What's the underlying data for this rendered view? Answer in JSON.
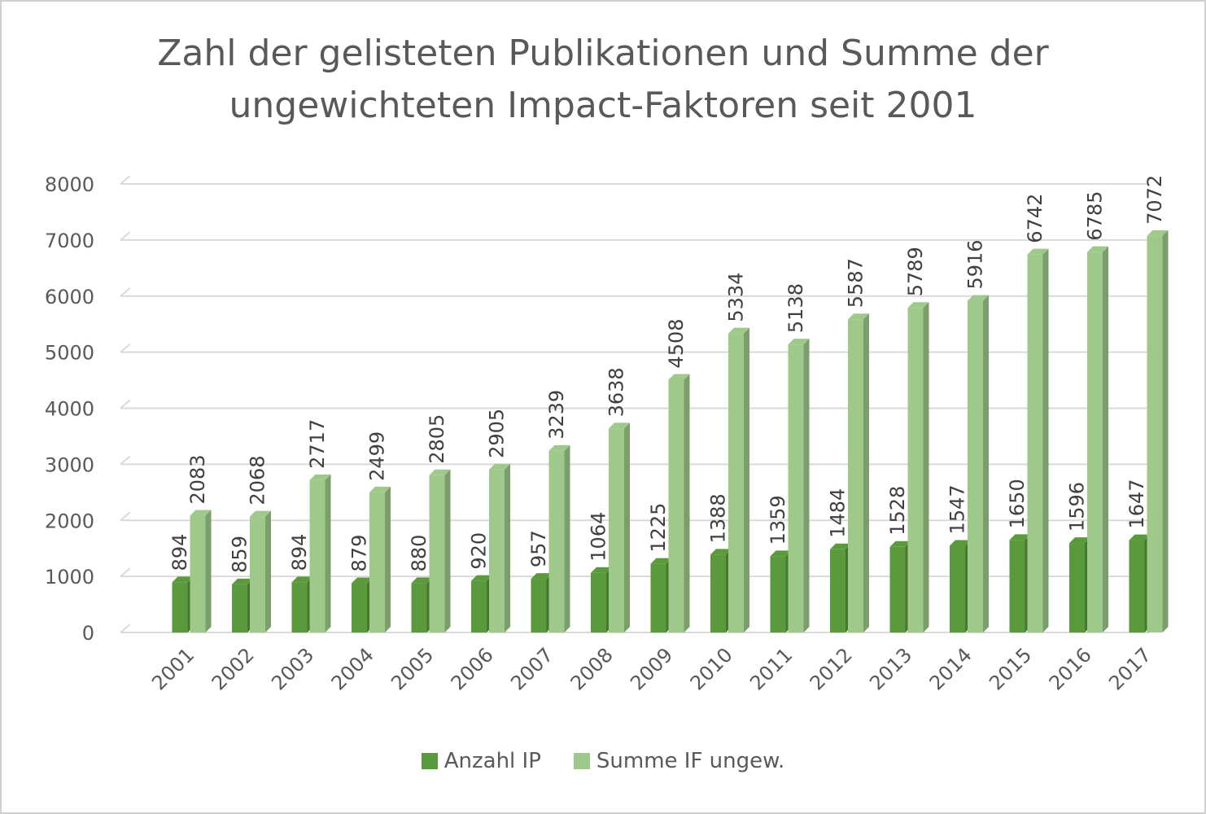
{
  "chart_data": {
    "type": "bar",
    "title_lines": [
      "Zahl der gelisteten Publikationen und Summe der",
      "ungewichteten Impact-Faktoren seit 2001"
    ],
    "categories": [
      "2001",
      "2002",
      "2003",
      "2004",
      "2005",
      "2006",
      "2007",
      "2008",
      "2009",
      "2010",
      "2011",
      "2012",
      "2013",
      "2014",
      "2015",
      "2016",
      "2017"
    ],
    "series": [
      {
        "name": "Anzahl IP",
        "color": "#5b9a3c",
        "values": [
          894,
          859,
          894,
          879,
          880,
          920,
          957,
          1064,
          1225,
          1388,
          1359,
          1484,
          1528,
          1547,
          1650,
          1596,
          1647
        ]
      },
      {
        "name": "Summe IF ungew.",
        "color": "#9fc98a",
        "values": [
          2083,
          2068,
          2717,
          2499,
          2805,
          2905,
          3239,
          3638,
          4508,
          5334,
          5138,
          5587,
          5789,
          5916,
          6742,
          6785,
          7072
        ]
      }
    ],
    "yticks": [
      0,
      1000,
      2000,
      3000,
      4000,
      5000,
      6000,
      7000,
      8000
    ],
    "ylim": [
      0,
      8000
    ],
    "grid": true,
    "legend_position": "bottom",
    "data_labels": true,
    "style": "3d-column"
  }
}
